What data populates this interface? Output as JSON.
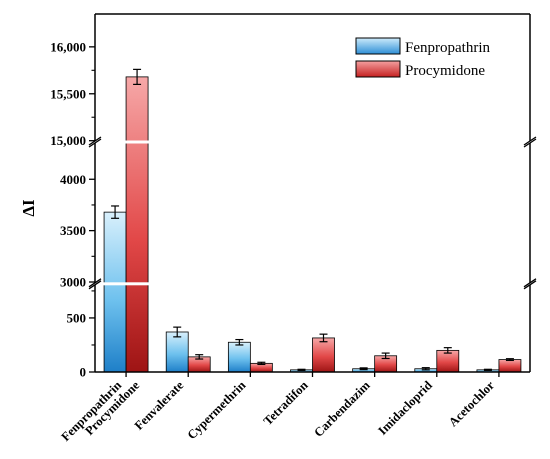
{
  "chart_data": {
    "type": "bar",
    "title": "",
    "xlabel": "",
    "ylabel": "ΔI",
    "categories": [
      "Fenpropathrin\nProcymidone",
      "Fenvalerate",
      "Cypermethrin",
      "Tetradifon",
      "Carbendazim",
      "Imidacloprid",
      "Acetochlor"
    ],
    "axis_breaks": [
      "0-3000 (lower)",
      "3000-4000 (middle)",
      "15000-16000 (upper)"
    ],
    "yticks_upper": [
      "15,000",
      "15,500",
      "16,000"
    ],
    "yticks_middle": [
      "3000",
      "3500",
      "4000"
    ],
    "yticks_lower": [
      "0",
      "500"
    ],
    "series": [
      {
        "name": "Fenpropathrin",
        "color": "#5BB8EA",
        "values": [
          3680,
          370,
          275,
          20,
          30,
          30,
          20
        ],
        "errors": [
          60,
          45,
          25,
          5,
          8,
          10,
          5
        ]
      },
      {
        "name": "Procymidone",
        "color": "#E65A5A",
        "values": [
          15680,
          140,
          80,
          315,
          150,
          200,
          115
        ],
        "errors": [
          80,
          20,
          10,
          35,
          25,
          25,
          8
        ]
      }
    ],
    "grid": false,
    "legend_position": "top-right"
  }
}
